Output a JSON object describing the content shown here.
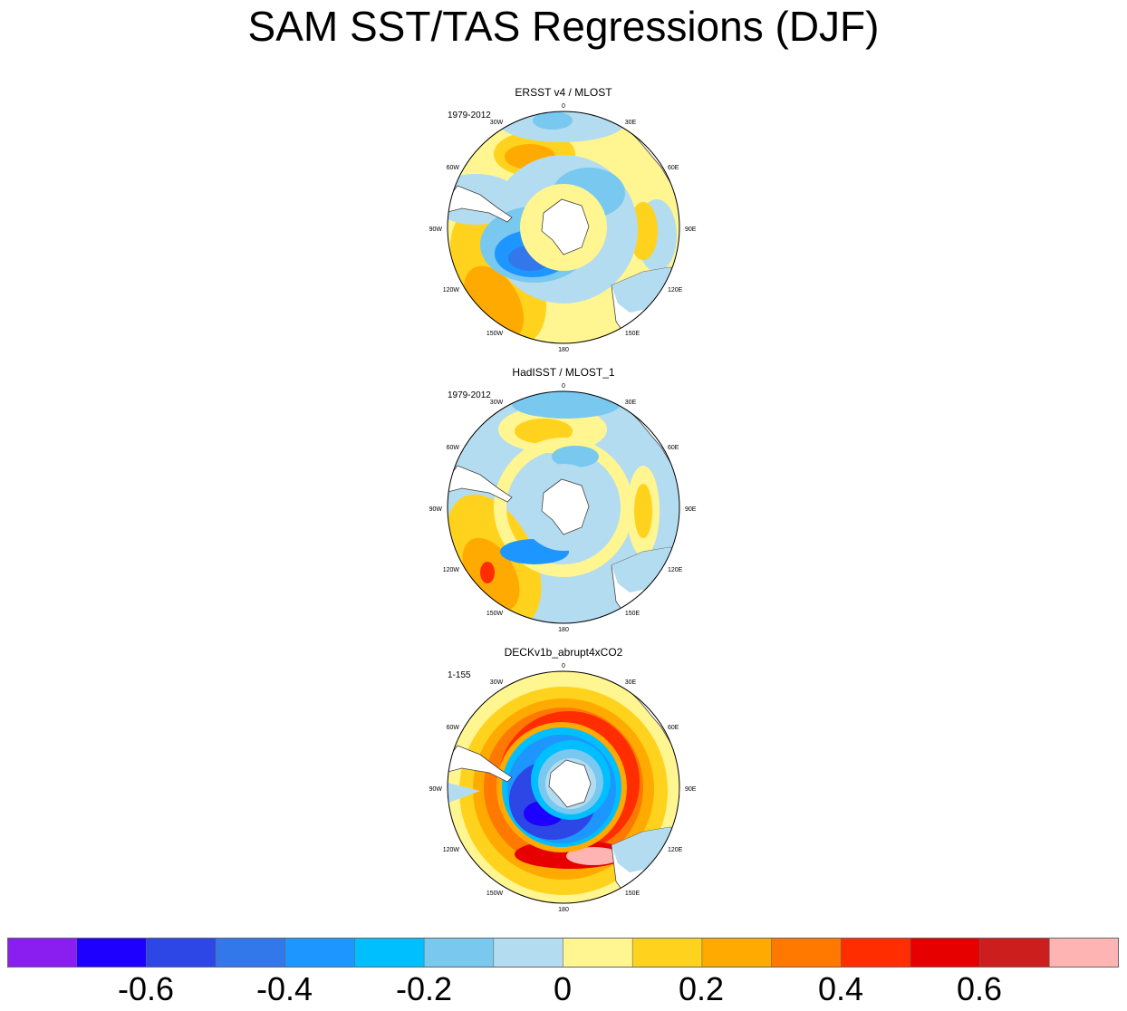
{
  "title": "SAM SST/TAS Regressions (DJF)",
  "panels": [
    {
      "title": "ERSST v4 / MLOST",
      "period": "1979-2012"
    },
    {
      "title": "HadISST / MLOST_1",
      "period": "1979-2012"
    },
    {
      "title": "DECKv1b_abrupt4xCO2",
      "period": "1-155"
    }
  ],
  "longitude_labels": [
    "0",
    "30E",
    "60E",
    "90E",
    "120E",
    "150E",
    "180",
    "150W",
    "120W",
    "90W",
    "60W",
    "30W"
  ],
  "colorbar": {
    "boundaries": [
      -0.7,
      -0.6,
      -0.5,
      -0.4,
      -0.3,
      -0.2,
      -0.1,
      0,
      0.1,
      0.2,
      0.3,
      0.4,
      0.5,
      0.6,
      0.7
    ],
    "colors": [
      "#8a1ef0",
      "#1e00ff",
      "#2d46e6",
      "#3278eb",
      "#1e96ff",
      "#00bfff",
      "#78c8f0",
      "#b4dcf0",
      "#fff591",
      "#ffd21e",
      "#ffaa00",
      "#ff7800",
      "#ff2d00",
      "#e60000",
      "#cd1e1e",
      "#ffb4b4"
    ],
    "tick_labels": [
      "-0.6",
      "-0.4",
      "-0.2",
      "0",
      "0.2",
      "0.4",
      "0.6"
    ]
  }
}
